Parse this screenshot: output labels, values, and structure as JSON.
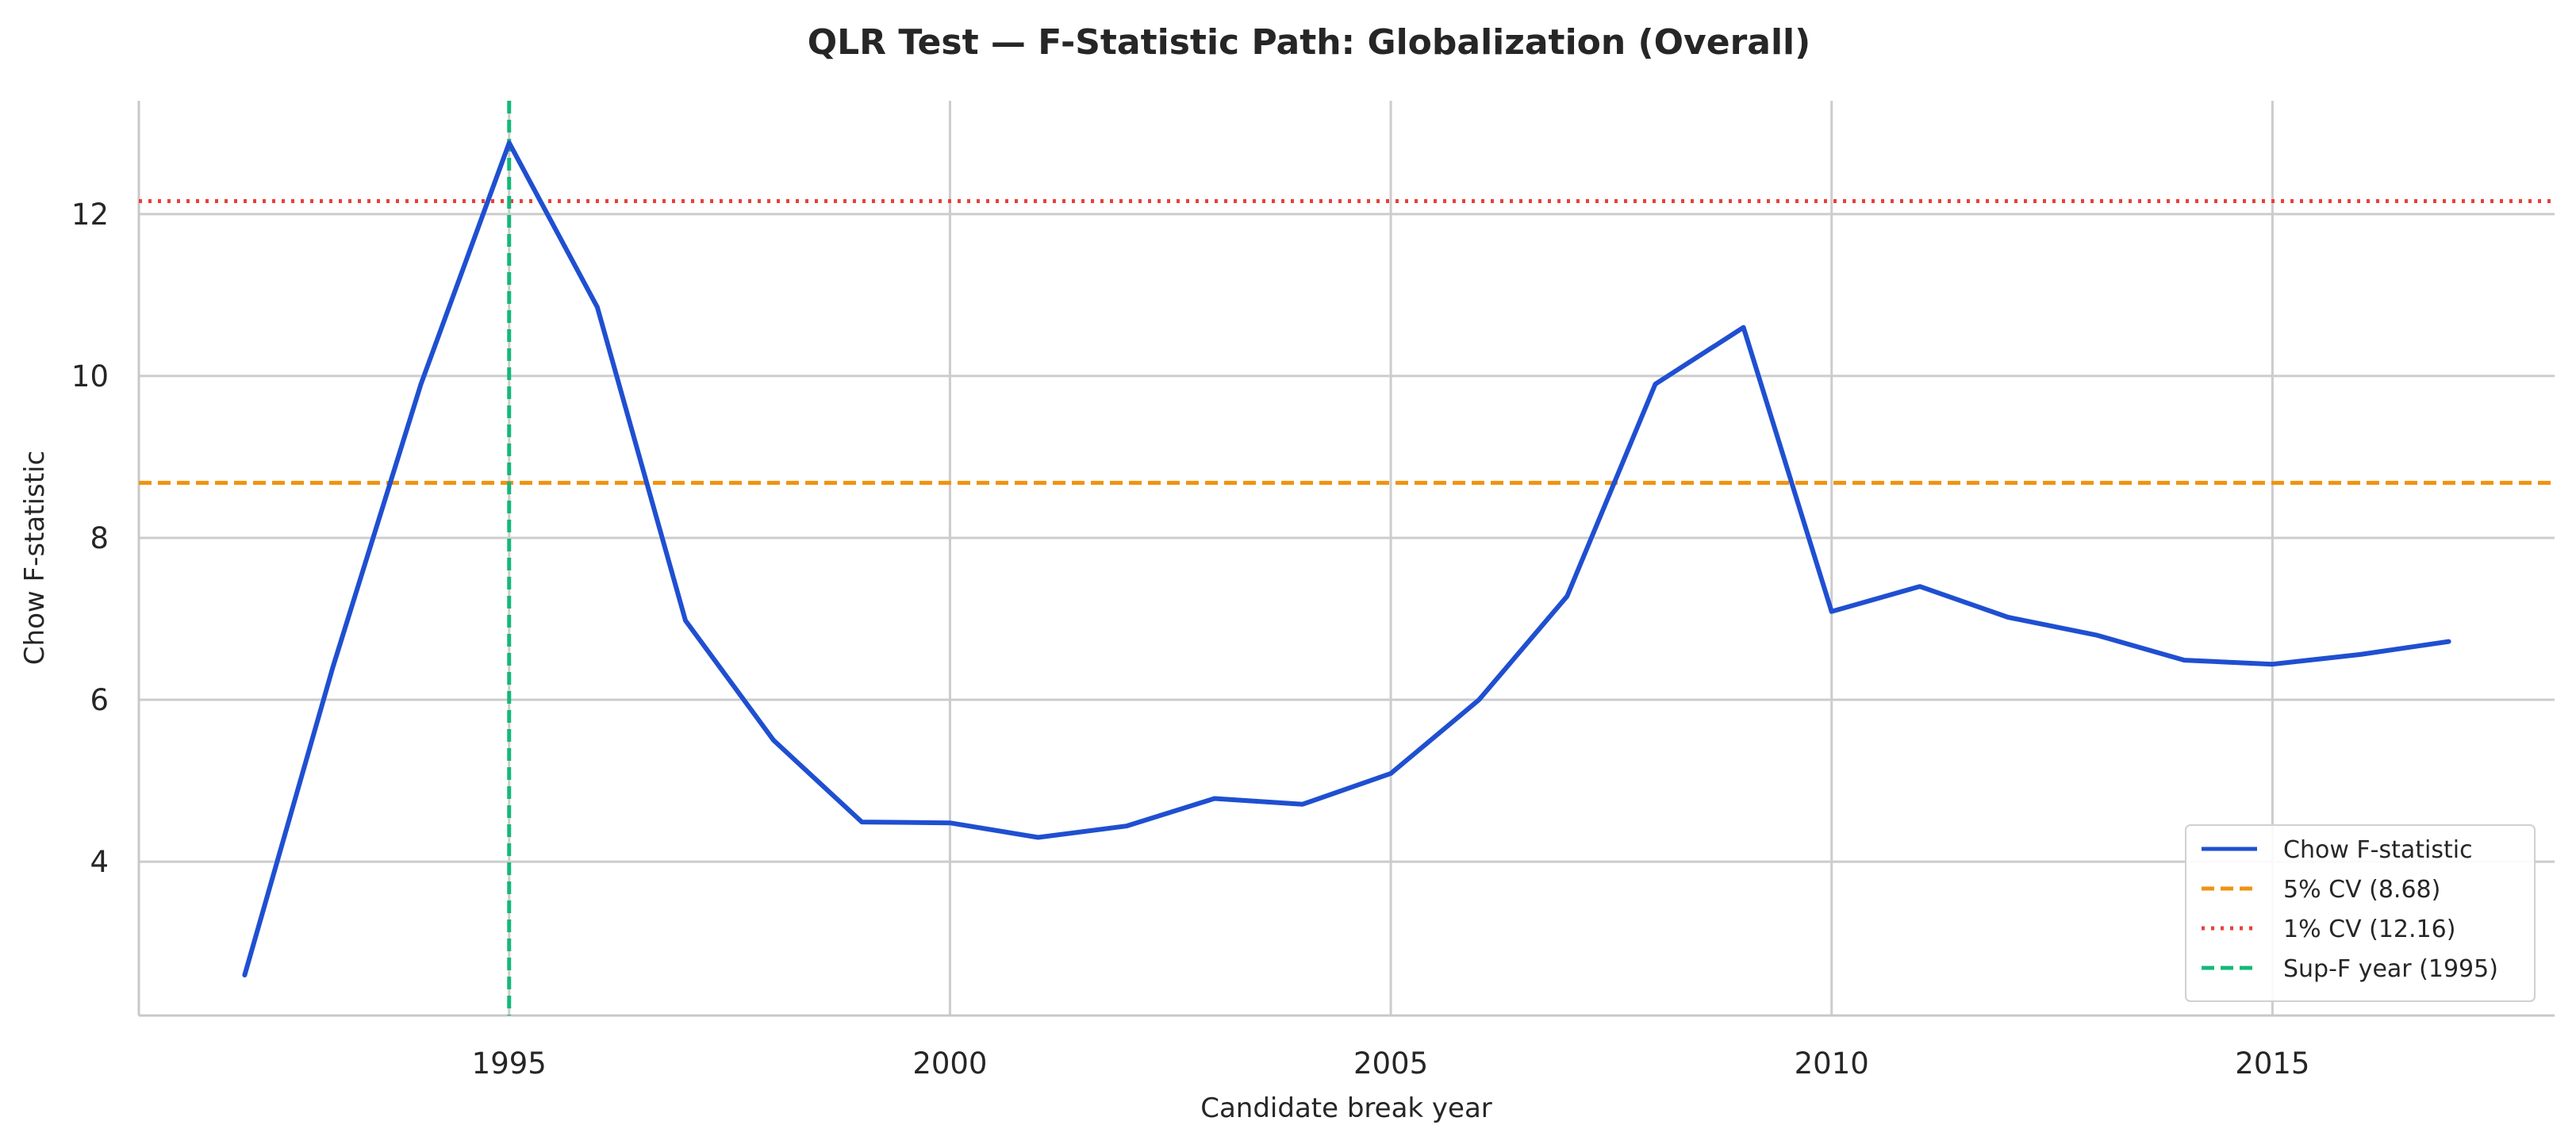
{
  "chart_data": {
    "type": "line",
    "title": "QLR Test — F-Statistic Path: Globalization (Overall)",
    "xlabel": "Candidate break year",
    "ylabel": "Chow F-statistic",
    "xlim": [
      1990.8,
      2018.2
    ],
    "ylim": [
      2.1,
      13.4
    ],
    "grid": true,
    "legend_position": "bottom-right",
    "x_ticks": [
      1995,
      2000,
      2005,
      2010,
      2015
    ],
    "y_ticks": [
      4,
      6,
      8,
      10,
      12
    ],
    "x_tick_labels": [
      "1995",
      "2000",
      "2005",
      "2010",
      "2015"
    ],
    "y_tick_labels": [
      "4",
      "6",
      "8",
      "10",
      "12"
    ],
    "series": [
      {
        "name": "Chow F-statistic",
        "color": "#1f4fd1",
        "style": "solid",
        "x": [
          1992,
          1993,
          1994,
          1995,
          1996,
          1997,
          1998,
          1999,
          2000,
          2001,
          2002,
          2003,
          2004,
          2005,
          2006,
          2007,
          2008,
          2009,
          2010,
          2011,
          2012,
          2013,
          2014,
          2015,
          2016,
          2017
        ],
        "y": [
          2.6,
          6.4,
          9.9,
          12.88,
          10.85,
          6.98,
          5.5,
          4.49,
          4.48,
          4.3,
          4.44,
          4.78,
          4.71,
          5.09,
          6.0,
          7.28,
          9.9,
          10.6,
          7.09,
          7.4,
          7.02,
          6.8,
          6.49,
          6.44,
          6.56,
          6.72
        ]
      }
    ],
    "reference_lines": [
      {
        "name": "5% CV (8.68)",
        "orientation": "horizontal",
        "value": 8.68,
        "color": "#f0930f",
        "style": "dashed"
      },
      {
        "name": "1% CV (12.16)",
        "orientation": "horizontal",
        "value": 12.16,
        "color": "#e8413a",
        "style": "dotted"
      },
      {
        "name": "Sup-F year (1995)",
        "orientation": "vertical",
        "value": 1995,
        "color": "#14b87a",
        "style": "dashed"
      }
    ]
  }
}
